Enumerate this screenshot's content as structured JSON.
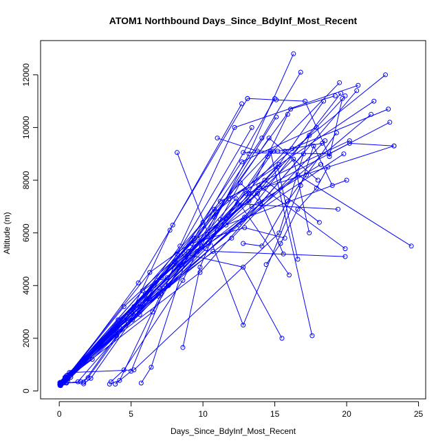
{
  "chart_data": {
    "type": "line",
    "title": "ATOM1 Northbound Days_Since_BdyInf_Most_Recent",
    "xlabel": "Days_Since_BdyInf_Most_Recent",
    "ylabel": "Altitude (m)",
    "xlim": [
      -1.3,
      25.5
    ],
    "ylim": [
      -300,
      13300
    ],
    "x_ticks": [
      0,
      5,
      10,
      15,
      20,
      25
    ],
    "y_ticks": [
      0,
      2000,
      4000,
      6000,
      8000,
      10000,
      12000
    ],
    "grid": false,
    "legend": "none",
    "marker": "open-circle",
    "colors": {
      "series": "#0000ff",
      "axes": "#000000"
    },
    "series": [
      {
        "x": [
          0.05,
          0.3,
          5.8,
          9.9,
          13.2,
          16.3
        ],
        "y": [
          230,
          400,
          3800,
          5500,
          9000,
          12800
        ]
      },
      {
        "x": [
          0.05,
          0.4,
          6.5,
          10.8,
          14.1,
          16.8
        ],
        "y": [
          280,
          420,
          3000,
          6900,
          9600,
          12100
        ]
      },
      {
        "x": [
          0.05,
          0.2,
          4.5,
          9.6,
          16.1,
          19.2
        ],
        "y": [
          250,
          300,
          3200,
          5800,
          10700,
          11200
        ]
      },
      {
        "x": [
          0.05,
          0.3,
          4.8,
          11.0,
          14.5,
          19.5
        ],
        "y": [
          300,
          350,
          2600,
          6100,
          8900,
          11700
        ]
      },
      {
        "x": [
          0.1,
          0.5,
          4.2,
          8.4,
          12.2,
          20.8
        ],
        "y": [
          200,
          330,
          2400,
          5500,
          10000,
          11600
        ]
      },
      {
        "x": [
          0.05,
          0.6,
          5.2,
          7.7,
          12.7
        ],
        "y": [
          260,
          380,
          3200,
          6100,
          10900
        ]
      },
      {
        "x": [
          0.1,
          0.5,
          5.5,
          7.9,
          13.1
        ],
        "y": [
          300,
          420,
          4100,
          6300,
          11100
        ]
      },
      {
        "x": [
          1.5,
          2.0,
          6.6,
          9.4,
          15.0
        ],
        "y": [
          350,
          500,
          4000,
          5800,
          11100
        ]
      },
      {
        "x": [
          1.7,
          2.2,
          6.1,
          8.2,
          13.4
        ],
        "y": [
          270,
          480,
          3500,
          5200,
          10000
        ]
      },
      {
        "x": [
          3.5,
          4.2,
          7.1,
          10.2,
          14.9
        ],
        "y": [
          260,
          400,
          3700,
          5400,
          9100
        ]
      },
      {
        "x": [
          3.6,
          4.5,
          8.6,
          10.8,
          15.1
        ],
        "y": [
          350,
          800,
          4200,
          6600,
          10400
        ]
      },
      {
        "x": [
          3.9,
          5.0,
          8.1,
          12.7,
          17.9
        ],
        "y": [
          260,
          750,
          4900,
          8700,
          10000
        ]
      },
      {
        "x": [
          5.7,
          6.4,
          9.0,
          13.4,
          18.2
        ],
        "y": [
          300,
          900,
          5300,
          7000,
          8600
        ]
      },
      {
        "x": [
          0.05,
          0.4,
          6.3,
          13.2,
          19.9
        ],
        "y": [
          310,
          460,
          4500,
          7200,
          11200
        ]
      },
      {
        "x": [
          0.05,
          0.3,
          5.1,
          12.9,
          19.6
        ],
        "y": [
          240,
          380,
          2700,
          6600,
          11300
        ]
      },
      {
        "x": [
          0.1,
          0.5,
          7.3,
          15.3,
          18.4
        ],
        "y": [
          220,
          420,
          3900,
          8600,
          11000
        ]
      },
      {
        "x": [
          0.1,
          0.8,
          6.9,
          14.0,
          20.7
        ],
        "y": [
          330,
          520,
          3600,
          7100,
          11400
        ]
      },
      {
        "x": [
          0.05,
          0.5,
          4.9,
          11.8,
          21.9
        ],
        "y": [
          260,
          450,
          2900,
          7300,
          11000
        ]
      },
      {
        "x": [
          0.05,
          0.4,
          4.5,
          10.9,
          22.7
        ],
        "y": [
          320,
          500,
          2700,
          6800,
          12000
        ]
      },
      {
        "x": [
          0.1,
          0.6,
          7.5,
          15.7,
          22.9
        ],
        "y": [
          270,
          600,
          4300,
          9100,
          10700
        ]
      },
      {
        "x": [
          0.1,
          0.6,
          5.6,
          13.0,
          23.3
        ],
        "y": [
          280,
          600,
          3200,
          7500,
          9300
        ]
      },
      {
        "x": [
          0.05,
          0.5,
          5.3,
          12.5,
          21.7
        ],
        "y": [
          240,
          520,
          3000,
          6300,
          10500
        ]
      },
      {
        "x": [
          0.05,
          0.7,
          8.3,
          16.6,
          24.5
        ],
        "y": [
          300,
          700,
          4700,
          8200,
          5500
        ]
      },
      {
        "x": [
          0.1,
          0.5,
          6.8,
          14.2,
          23.0
        ],
        "y": [
          250,
          480,
          4200,
          7700,
          10200
        ]
      },
      {
        "x": [
          0.05,
          0.4,
          3.7,
          9.6,
          19.8
        ],
        "y": [
          270,
          420,
          2300,
          5300,
          9000
        ]
      },
      {
        "x": [
          0.1,
          0.6,
          4.1,
          11.6,
          20.0
        ],
        "y": [
          250,
          460,
          2700,
          6300,
          8000
        ]
      },
      {
        "x": [
          0.05,
          0.5,
          5.8,
          12.4,
          19.4
        ],
        "y": [
          210,
          420,
          3300,
          7100,
          6900
        ]
      },
      {
        "x": [
          0.1,
          0.6,
          5.0,
          11.2,
          20.2
        ],
        "y": [
          260,
          520,
          3000,
          7200,
          9500
        ]
      },
      {
        "x": [
          0.05,
          0.5,
          7.1,
          14.3,
          18.1
        ],
        "y": [
          310,
          580,
          4300,
          8000,
          6400
        ]
      },
      {
        "x": [
          0.1,
          0.8,
          6.0,
          13.9,
          19.9
        ],
        "y": [
          330,
          650,
          3700,
          7800,
          5400
        ]
      },
      {
        "x": [
          0.05,
          0.4,
          3.9,
          10.7,
          19.9
        ],
        "y": [
          240,
          400,
          2300,
          5300,
          5100
        ]
      },
      {
        "x": [
          0.05,
          0.3,
          5.6,
          15.2,
          16.6
        ],
        "y": [
          250,
          380,
          2900,
          8500,
          5000
        ]
      },
      {
        "x": [
          0.1,
          0.5,
          6.2,
          12.3,
          16.0
        ],
        "y": [
          260,
          480,
          3500,
          7300,
          4400
        ]
      },
      {
        "x": [
          0.05,
          0.4,
          8.0,
          13.8,
          15.6
        ],
        "y": [
          280,
          520,
          4900,
          7500,
          5200
        ]
      },
      {
        "x": [
          0.1,
          0.6,
          7.0,
          16.3,
          17.4
        ],
        "y": [
          300,
          600,
          3900,
          8800,
          6000
        ]
      },
      {
        "x": [
          0.1,
          0.7,
          7.6,
          14.6,
          18.0
        ],
        "y": [
          280,
          620,
          4000,
          9600,
          8000
        ]
      },
      {
        "x": [
          0.05,
          0.5,
          9.2,
          12.9,
          15.7
        ],
        "y": [
          250,
          500,
          5600,
          6200,
          5800
        ]
      },
      {
        "x": [
          0.05,
          0.4,
          10.0,
          14.7,
          17.6
        ],
        "y": [
          240,
          450,
          6400,
          9100,
          2100
        ]
      },
      {
        "x": [
          0.1,
          0.6,
          8.7,
          12.8,
          15.5
        ],
        "y": [
          260,
          540,
          5200,
          4700,
          2000
        ]
      },
      {
        "x": [
          0.2,
          0.8,
          5.2,
          15.3,
          17.4
        ],
        "y": [
          330,
          700,
          800,
          6000,
          9700
        ]
      },
      {
        "x": [
          8.2,
          12.8,
          16.8,
          17.7,
          19.0
        ],
        "y": [
          9050,
          2500,
          7800,
          9300,
          7800
        ]
      },
      {
        "x": [
          8.6,
          9.8,
          11.2,
          12.6,
          13.9
        ],
        "y": [
          1650,
          4700,
          6500,
          7900,
          7200
        ]
      },
      {
        "x": [
          12.8,
          18.8,
          20.2,
          23.3
        ],
        "y": [
          9050,
          9000,
          9400,
          9300
        ]
      },
      {
        "x": [
          13.1,
          15.1,
          17.1,
          18.8,
          19.7
        ],
        "y": [
          11100,
          11050,
          11000,
          8900,
          11100
        ]
      },
      {
        "x": [
          11.0,
          13.8,
          15.2,
          16.2,
          18.3
        ],
        "y": [
          9600,
          9100,
          9100,
          9200,
          9400
        ]
      },
      {
        "x": [
          12.8,
          14.1,
          15.9,
          17.2,
          19.3
        ],
        "y": [
          5600,
          5500,
          7200,
          8200,
          9800
        ]
      },
      {
        "x": [
          14.4,
          15.4,
          16.6,
          17.9,
          18.7
        ],
        "y": [
          4800,
          5600,
          6900,
          7700,
          8500
        ]
      },
      {
        "x": [
          0.05,
          0.3,
          2.3,
          10.4,
          13.2,
          15.9
        ],
        "y": [
          260,
          380,
          1200,
          5600,
          7500,
          10500
        ]
      },
      {
        "x": [
          0.1,
          0.5,
          1.3,
          6.3,
          12.0,
          18.5
        ],
        "y": [
          230,
          300,
          350,
          3500,
          5800,
          9500
        ]
      },
      {
        "x": [
          0.05,
          0.3,
          1.7,
          4.0,
          9.8,
          17.0
        ],
        "y": [
          280,
          300,
          330,
          2100,
          4500,
          9000
        ]
      }
    ]
  }
}
